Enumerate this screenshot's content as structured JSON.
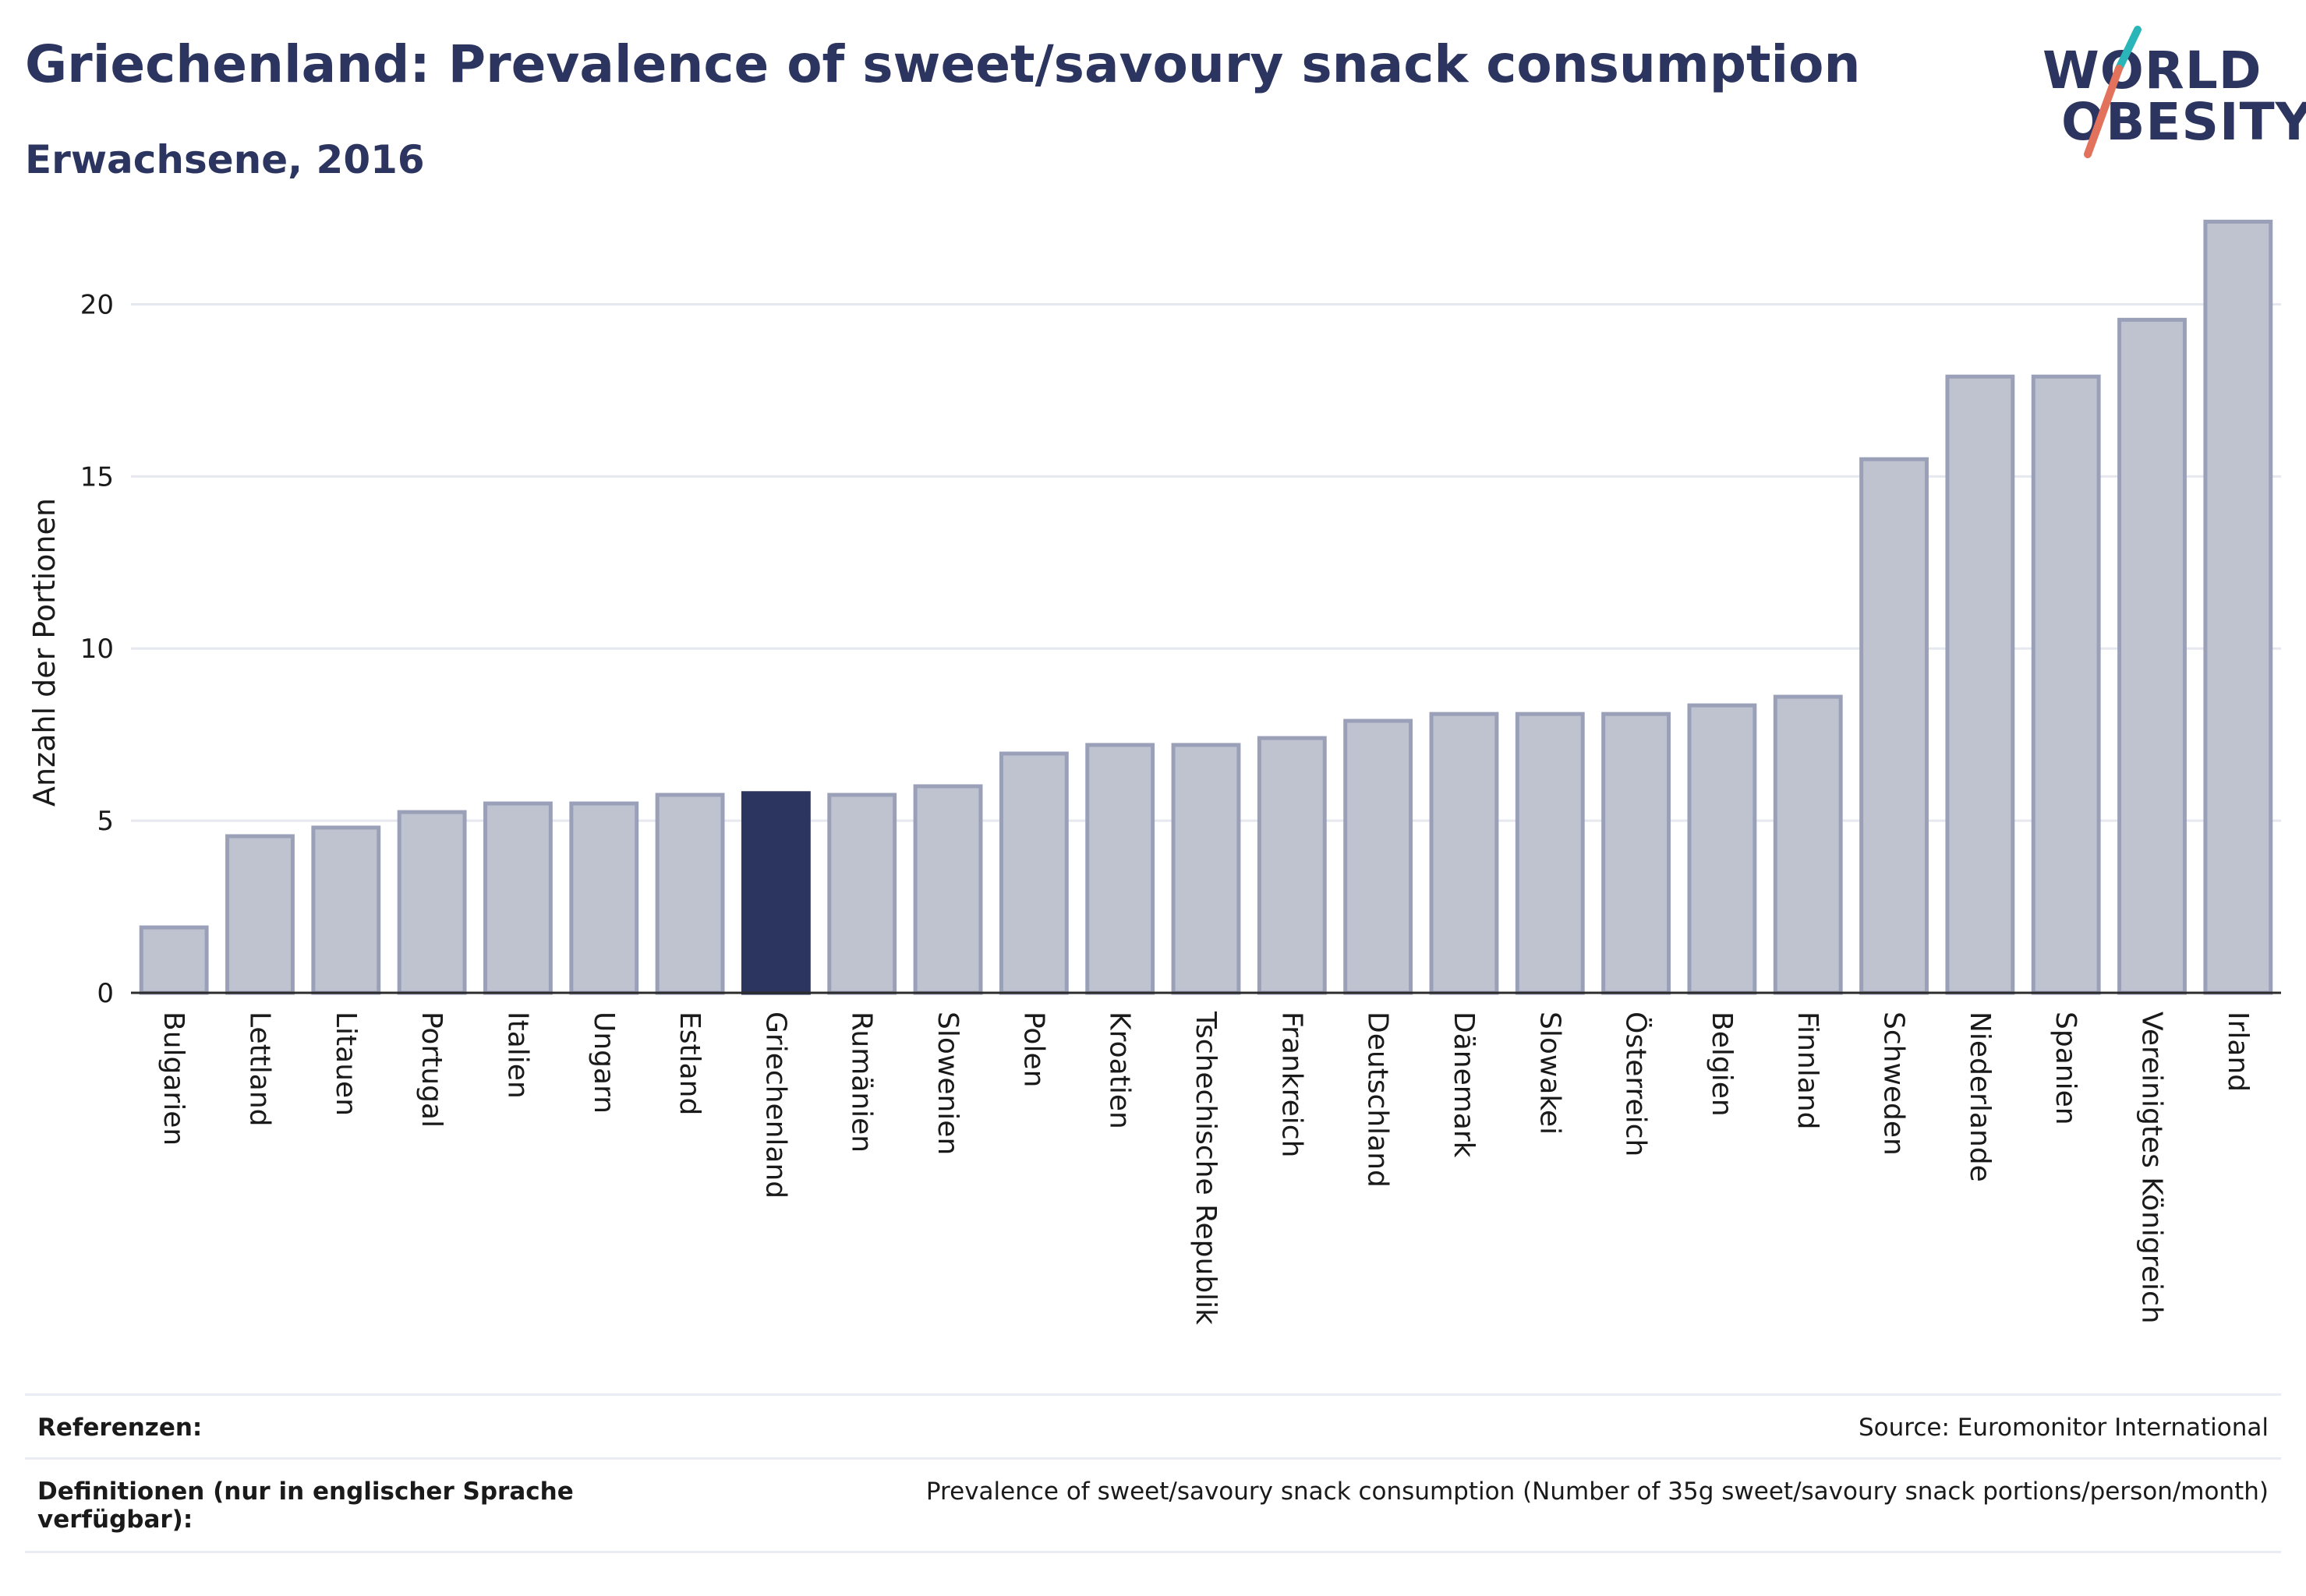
{
  "header": {
    "title": "Griechenland: Prevalence of sweet/savoury snack consumption",
    "subtitle": "Erwachsene, 2016"
  },
  "logo": {
    "line1": "WORLD",
    "line2": "OBESITY",
    "accent_colors": [
      "#2ab6b8",
      "#e2725b"
    ]
  },
  "chart_data": {
    "type": "bar",
    "title": "",
    "xlabel": "",
    "ylabel": "Anzahl der Portionen",
    "ylim": [
      0,
      22.5
    ],
    "yticks": [
      0,
      5,
      10,
      15,
      20
    ],
    "grid": true,
    "highlight": "Griechenland",
    "colors": {
      "bar": "#bfc3d0",
      "bar_edge": "#9aa0b8",
      "highlight": "#2c355f"
    },
    "categories": [
      "Bulgarien",
      "Lettland",
      "Litauen",
      "Portugal",
      "Italien",
      "Ungarn",
      "Estland",
      "Griechenland",
      "Rumänien",
      "Slowenien",
      "Polen",
      "Kroatien",
      "Tschechische Republik",
      "Frankreich",
      "Deutschland",
      "Dänemark",
      "Slowakei",
      "Österreich",
      "Belgien",
      "Finnland",
      "Schweden",
      "Niederlande",
      "Spanien",
      "Vereinigtes Königreich",
      "Irland"
    ],
    "values": [
      1.9,
      4.55,
      4.8,
      5.25,
      5.5,
      5.5,
      5.75,
      5.8,
      5.75,
      6.0,
      6.95,
      7.2,
      7.2,
      7.4,
      7.9,
      8.1,
      8.1,
      8.1,
      8.35,
      8.6,
      15.5,
      17.9,
      17.9,
      19.55,
      22.4
    ]
  },
  "footer": {
    "references_label": "Referenzen:",
    "references_value": "Source: Euromonitor International",
    "definitions_label": "Definitionen (nur in englischer Sprache verfügbar):",
    "definitions_value": "Prevalence of sweet/savoury snack consumption (Number of 35g sweet/savoury snack portions/person/month)"
  }
}
